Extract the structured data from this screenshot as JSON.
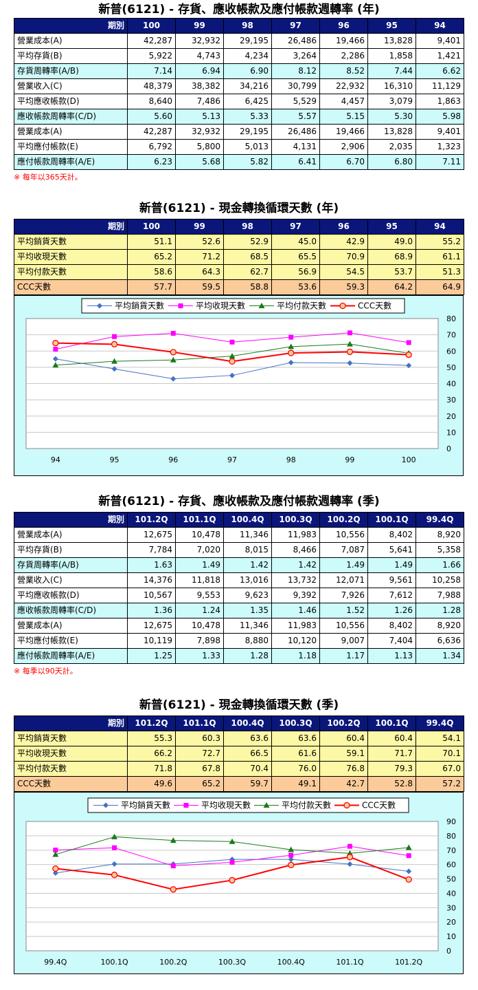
{
  "colors": {
    "header": "#0a167a",
    "cyan": "#cdfafa",
    "yellow": "#fcf8a6",
    "orange": "#fbcb9a",
    "note": "#ff0000"
  },
  "section1": {
    "title": "新普(6121) -  存貨、應收帳款及應付帳款週轉率 (年)",
    "period_label": "期別",
    "columns": [
      "100",
      "99",
      "98",
      "97",
      "96",
      "95",
      "94"
    ],
    "rows": [
      {
        "label": "營業成本(A)",
        "values": [
          "42,287",
          "32,932",
          "29,195",
          "26,486",
          "19,466",
          "13,828",
          "9,401"
        ]
      },
      {
        "label": "平均存貨(B)",
        "values": [
          "5,922",
          "4,743",
          "4,234",
          "3,264",
          "2,286",
          "1,858",
          "1,421"
        ]
      },
      {
        "label": "存貨周轉率(A/B)",
        "values": [
          "7.14",
          "6.94",
          "6.90",
          "8.12",
          "8.52",
          "7.44",
          "6.62"
        ]
      },
      {
        "label": "營業收入(C)",
        "values": [
          "48,379",
          "38,382",
          "34,216",
          "30,799",
          "22,932",
          "16,310",
          "11,129"
        ]
      },
      {
        "label": "平均應收帳款(D)",
        "values": [
          "8,640",
          "7,486",
          "6,425",
          "5,529",
          "4,457",
          "3,079",
          "1,863"
        ]
      },
      {
        "label": "應收帳款周轉率(C/D)",
        "values": [
          "5.60",
          "5.13",
          "5.33",
          "5.57",
          "5.15",
          "5.30",
          "5.98"
        ]
      },
      {
        "label": "營業成本(A)",
        "values": [
          "42,287",
          "32,932",
          "29,195",
          "26,486",
          "19,466",
          "13,828",
          "9,401"
        ]
      },
      {
        "label": "平均應付帳款(E)",
        "values": [
          "6,792",
          "5,800",
          "5,013",
          "4,131",
          "2,906",
          "2,035",
          "1,323"
        ]
      },
      {
        "label": "應付帳款周轉率(A/E)",
        "values": [
          "6.23",
          "5.68",
          "5.82",
          "6.41",
          "6.70",
          "6.80",
          "7.11"
        ]
      }
    ],
    "note": "※ 每年以365天計。"
  },
  "section2": {
    "title": "新普(6121) -  現金轉換循環天數 (年)",
    "period_label": "期別",
    "columns": [
      "100",
      "99",
      "98",
      "97",
      "96",
      "95",
      "94"
    ],
    "rows": [
      {
        "label": "平均銷貨天數",
        "values": [
          "51.1",
          "52.6",
          "52.9",
          "45.0",
          "42.9",
          "49.0",
          "55.2"
        ]
      },
      {
        "label": "平均收現天數",
        "values": [
          "65.2",
          "71.2",
          "68.5",
          "65.5",
          "70.9",
          "68.9",
          "61.1"
        ]
      },
      {
        "label": "平均付款天數",
        "values": [
          "58.6",
          "64.3",
          "62.7",
          "56.9",
          "54.5",
          "53.7",
          "51.3"
        ]
      },
      {
        "label": "CCC天數",
        "values": [
          "57.7",
          "59.5",
          "58.8",
          "53.6",
          "59.3",
          "64.2",
          "64.9"
        ]
      }
    ]
  },
  "section3": {
    "title": "新普(6121) -  存貨、應收帳款及應付帳款週轉率 (季)",
    "period_label": "期別",
    "columns": [
      "101.2Q",
      "101.1Q",
      "100.4Q",
      "100.3Q",
      "100.2Q",
      "100.1Q",
      "99.4Q"
    ],
    "rows": [
      {
        "label": "營業成本(A)",
        "values": [
          "12,675",
          "10,478",
          "11,346",
          "11,983",
          "10,556",
          "8,402",
          "8,920"
        ]
      },
      {
        "label": "平均存貨(B)",
        "values": [
          "7,784",
          "7,020",
          "8,015",
          "8,466",
          "7,087",
          "5,641",
          "5,358"
        ]
      },
      {
        "label": "存貨周轉率(A/B)",
        "values": [
          "1.63",
          "1.49",
          "1.42",
          "1.42",
          "1.49",
          "1.49",
          "1.66"
        ]
      },
      {
        "label": "營業收入(C)",
        "values": [
          "14,376",
          "11,818",
          "13,016",
          "13,732",
          "12,071",
          "9,561",
          "10,258"
        ]
      },
      {
        "label": "平均應收帳款(D)",
        "values": [
          "10,567",
          "9,553",
          "9,623",
          "9,392",
          "7,926",
          "7,612",
          "7,988"
        ]
      },
      {
        "label": "應收帳款周轉率(C/D)",
        "values": [
          "1.36",
          "1.24",
          "1.35",
          "1.46",
          "1.52",
          "1.26",
          "1.28"
        ]
      },
      {
        "label": "營業成本(A)",
        "values": [
          "12,675",
          "10,478",
          "11,346",
          "11,983",
          "10,556",
          "8,402",
          "8,920"
        ]
      },
      {
        "label": "平均應付帳款(E)",
        "values": [
          "10,119",
          "7,898",
          "8,880",
          "10,120",
          "9,007",
          "7,404",
          "6,636"
        ]
      },
      {
        "label": "應付帳款周轉率(A/E)",
        "values": [
          "1.25",
          "1.33",
          "1.28",
          "1.18",
          "1.17",
          "1.13",
          "1.34"
        ]
      }
    ],
    "note": "※ 每季以90天計。"
  },
  "section4": {
    "title": "新普(6121) -  現金轉換循環天數 (季)",
    "period_label": "期別",
    "columns": [
      "101.2Q",
      "101.1Q",
      "100.4Q",
      "100.3Q",
      "100.2Q",
      "100.1Q",
      "99.4Q"
    ],
    "rows": [
      {
        "label": "平均銷貨天數",
        "values": [
          "55.3",
          "60.3",
          "63.6",
          "63.6",
          "60.4",
          "60.4",
          "54.1"
        ]
      },
      {
        "label": "平均收現天數",
        "values": [
          "66.2",
          "72.7",
          "66.5",
          "61.6",
          "59.1",
          "71.7",
          "70.1"
        ]
      },
      {
        "label": "平均付款天數",
        "values": [
          "71.8",
          "67.8",
          "70.4",
          "76.0",
          "76.8",
          "79.3",
          "67.0"
        ]
      },
      {
        "label": "CCC天數",
        "values": [
          "49.6",
          "65.2",
          "59.7",
          "49.1",
          "42.7",
          "52.8",
          "57.2"
        ]
      }
    ]
  },
  "chart_data": [
    {
      "type": "line",
      "categories": [
        "94",
        "95",
        "96",
        "97",
        "98",
        "99",
        "100"
      ],
      "ylim": [
        0,
        80
      ],
      "yticks": [
        0,
        10,
        20,
        30,
        40,
        50,
        60,
        70,
        80
      ],
      "grid": true,
      "legend": "top",
      "series": [
        {
          "name": "平均銷貨天數",
          "color": "#4472c4",
          "marker": "diamond",
          "values": [
            55.2,
            49.0,
            42.9,
            45.0,
            52.9,
            52.6,
            51.1
          ]
        },
        {
          "name": "平均收現天數",
          "color": "#ff00ff",
          "marker": "square",
          "values": [
            61.1,
            68.9,
            70.9,
            65.5,
            68.5,
            71.2,
            65.2
          ]
        },
        {
          "name": "平均付款天數",
          "color": "#1a7a1a",
          "marker": "triangle",
          "values": [
            51.3,
            53.7,
            54.5,
            56.9,
            62.7,
            64.3,
            58.6
          ]
        },
        {
          "name": "CCC天數",
          "color": "#ff0000",
          "marker": "circle",
          "values": [
            64.9,
            64.2,
            59.3,
            53.6,
            58.8,
            59.5,
            57.7
          ]
        }
      ]
    },
    {
      "type": "line",
      "categories": [
        "99.4Q",
        "100.1Q",
        "100.2Q",
        "100.3Q",
        "100.4Q",
        "101.1Q",
        "101.2Q"
      ],
      "ylim": [
        0,
        90
      ],
      "yticks": [
        0,
        10,
        20,
        30,
        40,
        50,
        60,
        70,
        80,
        90
      ],
      "grid": true,
      "legend": "top",
      "series": [
        {
          "name": "平均銷貨天數",
          "color": "#4472c4",
          "marker": "diamond",
          "values": [
            54.1,
            60.4,
            60.4,
            63.6,
            63.6,
            60.3,
            55.3
          ]
        },
        {
          "name": "平均收現天數",
          "color": "#ff00ff",
          "marker": "square",
          "values": [
            70.1,
            71.7,
            59.1,
            61.6,
            66.5,
            72.7,
            66.2
          ]
        },
        {
          "name": "平均付款天數",
          "color": "#1a7a1a",
          "marker": "triangle",
          "values": [
            67.0,
            79.3,
            76.8,
            76.0,
            70.4,
            67.8,
            71.8
          ]
        },
        {
          "name": "CCC天數",
          "color": "#ff0000",
          "marker": "circle",
          "values": [
            57.2,
            52.8,
            42.7,
            49.1,
            59.7,
            65.2,
            49.6
          ]
        }
      ]
    }
  ]
}
